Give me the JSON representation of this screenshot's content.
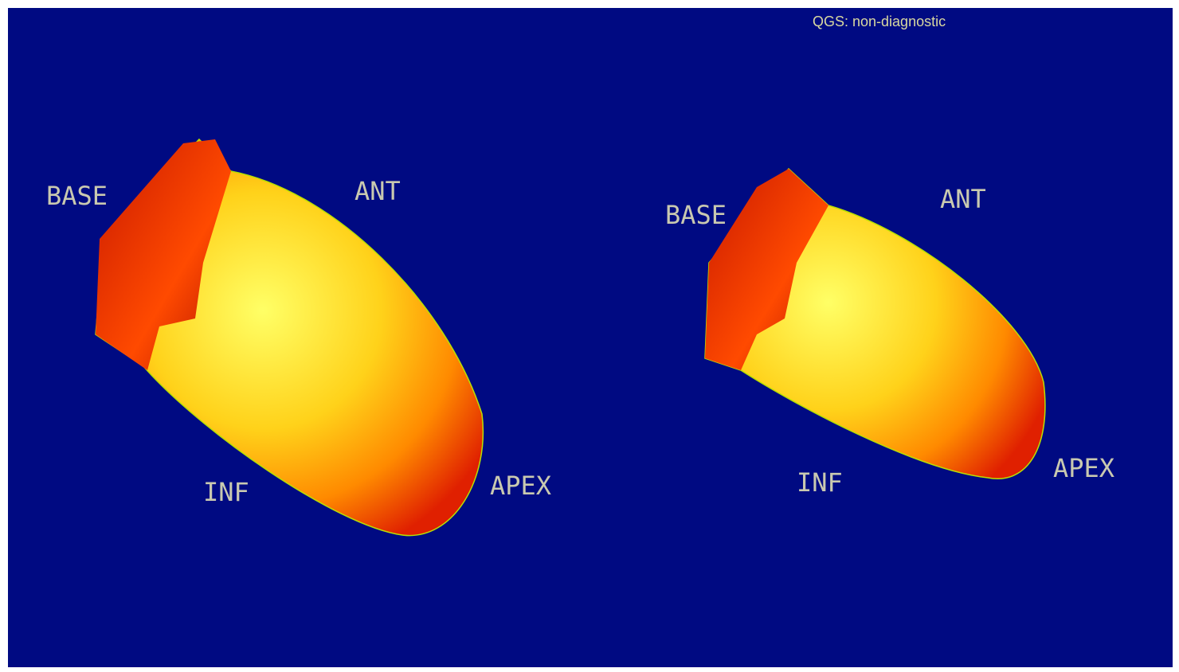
{
  "header": {
    "status": "QGS: non-diagnostic"
  },
  "views": [
    {
      "labels": {
        "base": "BASE",
        "ant": "ANT",
        "inf": "INF",
        "apex": "APEX"
      }
    },
    {
      "labels": {
        "base": "BASE",
        "ant": "ANT",
        "inf": "INF",
        "apex": "APEX"
      }
    }
  ]
}
